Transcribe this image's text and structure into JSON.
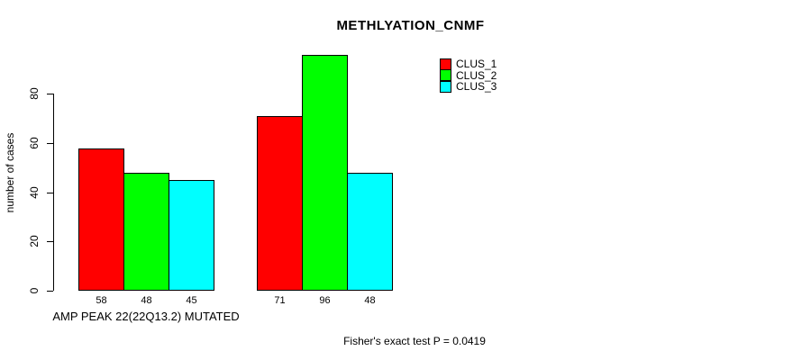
{
  "title": "METHLYATION_CNMF",
  "y_axis": {
    "label": "number of cases"
  },
  "x_axis": {
    "label": "AMP PEAK 22(22Q13.2) MUTATED"
  },
  "footer": "Fisher's exact test P = 0.0419",
  "chart_data": {
    "type": "bar",
    "title": "METHLYATION_CNMF",
    "ylabel": "number of cases",
    "xlabel": "AMP PEAK 22(22Q13.2) MUTATED",
    "categories": [
      "AMP PEAK 22(22Q13.2) MUTATED",
      ""
    ],
    "series": [
      {
        "name": "CLUS_1",
        "color": "#ff0000",
        "values": [
          58,
          71
        ]
      },
      {
        "name": "CLUS_2",
        "color": "#00ff00",
        "values": [
          48,
          96
        ]
      },
      {
        "name": "CLUS_3",
        "color": "#00ffff",
        "values": [
          45,
          48
        ]
      }
    ],
    "yticks": [
      0,
      20,
      40,
      60,
      80
    ],
    "ylim": [
      0,
      100
    ],
    "grid": false,
    "legend_position": "top-right",
    "bar_value_labels": [
      [
        58,
        48,
        45
      ],
      [
        71,
        96,
        48
      ]
    ],
    "annotation": "Fisher's exact test P = 0.0419"
  }
}
